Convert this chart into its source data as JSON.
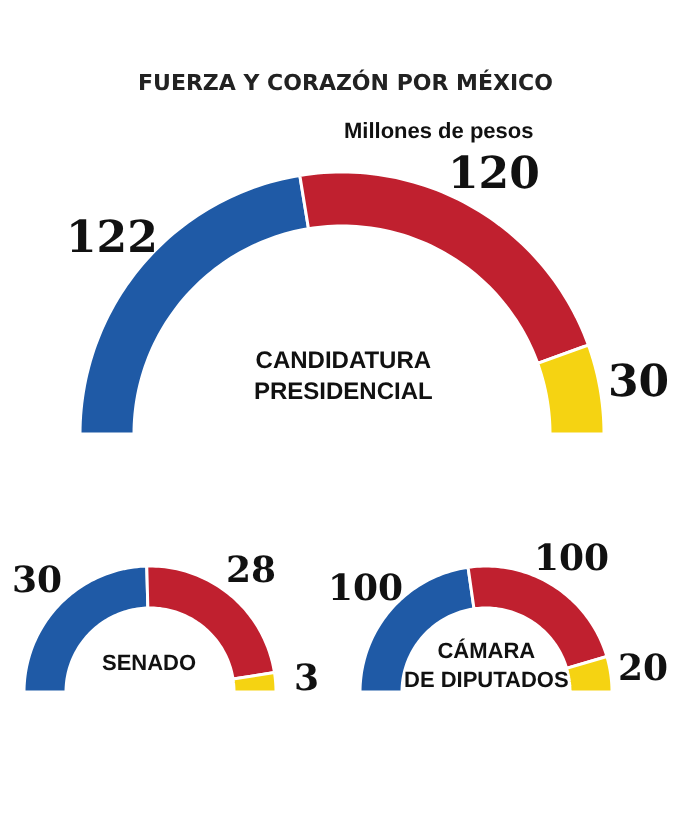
{
  "chart_data": [
    {
      "type": "other",
      "title": "FUERZA Y CORAZÓN POR MÉXICO",
      "subtitle": "Millones de pesos"
    },
    {
      "type": "donut",
      "title": "CANDIDATURA\nPRESIDENCIAL",
      "categories": [
        null,
        null,
        null
      ],
      "values": [
        122,
        120,
        30
      ],
      "colors": [
        "#1f5aa6",
        "#c0202f",
        "#f5d312"
      ],
      "data_labels": true
    },
    {
      "type": "donut",
      "title": "SENADO",
      "categories": [
        null,
        null,
        null
      ],
      "values": [
        30,
        28,
        3
      ],
      "colors": [
        "#1f5aa6",
        "#c0202f",
        "#f5d312"
      ],
      "data_labels": true
    },
    {
      "type": "donut",
      "title": "CÁMARA\nDE DIPUTADOS",
      "categories": [
        null,
        null,
        null
      ],
      "values": [
        100,
        100,
        20
      ],
      "colors": [
        "#1f5aa6",
        "#c0202f",
        "#f5d312"
      ],
      "data_labels": true
    }
  ]
}
